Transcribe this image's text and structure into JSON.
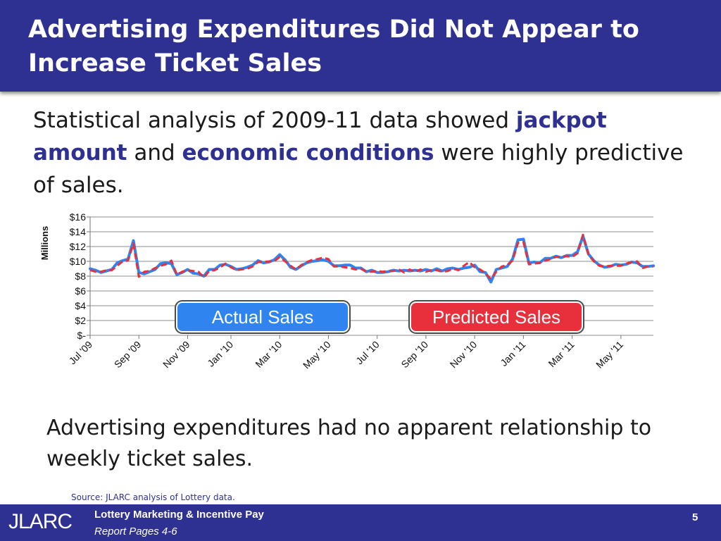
{
  "header": {
    "title": "Advertising Expenditures Did Not Appear to Increase Ticket Sales"
  },
  "intro": {
    "part1": "Statistical analysis of 2009-11 data showed ",
    "highlight1": "jackpot amount",
    "part2": " and ",
    "highlight2": "economic conditions",
    "part3": " were highly predictive of sales."
  },
  "conclusion": "Advertising expenditures had no apparent relationship to weekly ticket sales.",
  "source": "Source: JLARC analysis of Lottery data.",
  "footer": {
    "logo": "JLARC",
    "line1": "Lottery Marketing & Incentive Pay",
    "line2": "Report Pages 4-6",
    "page": "5"
  },
  "colors": {
    "accent": "#2e3192",
    "actual": "#2f84f0",
    "predicted": "#e8303c"
  },
  "chart_data": {
    "type": "line",
    "ylabel": "Millions",
    "ylim": [
      0,
      16
    ],
    "y_ticks": [
      {
        "value": 16,
        "label": "$16"
      },
      {
        "value": 14,
        "label": "$14"
      },
      {
        "value": 12,
        "label": "$12"
      },
      {
        "value": 10,
        "label": "$10"
      },
      {
        "value": 8,
        "label": "$8"
      },
      {
        "value": 6,
        "label": "$6"
      },
      {
        "value": 4,
        "label": "$4"
      },
      {
        "value": 2,
        "label": "$2"
      },
      {
        "value": 0,
        "label": "$-"
      }
    ],
    "x_ticks": [
      {
        "index": 0,
        "label": "Jul '09"
      },
      {
        "index": 9,
        "label": "Sep '09"
      },
      {
        "index": 18,
        "label": "Nov '09"
      },
      {
        "index": 26,
        "label": "Jan '10"
      },
      {
        "index": 35,
        "label": "Mar '10"
      },
      {
        "index": 44,
        "label": "May '10"
      },
      {
        "index": 53,
        "label": "Jul '10"
      },
      {
        "index": 62,
        "label": "Sep '10"
      },
      {
        "index": 71,
        "label": "Nov '10"
      },
      {
        "index": 80,
        "label": "Jan '11"
      },
      {
        "index": 89,
        "label": "Mar '11"
      },
      {
        "index": 98,
        "label": "May '11"
      }
    ],
    "grid": true,
    "legend": {
      "actual": "Actual Sales",
      "predicted": "Predicted Sales",
      "placement": "bottom"
    },
    "series": [
      {
        "name": "Actual Sales",
        "values": [
          9.0,
          8.8,
          8.5,
          8.7,
          8.9,
          9.8,
          10.1,
          10.3,
          12.8,
          8.5,
          8.3,
          8.6,
          8.9,
          9.7,
          9.8,
          9.7,
          8.2,
          8.5,
          8.9,
          8.4,
          8.3,
          8.0,
          8.9,
          8.9,
          9.5,
          9.6,
          9.3,
          8.9,
          9.0,
          9.2,
          9.5,
          10.1,
          9.8,
          9.9,
          10.2,
          10.9,
          10.2,
          9.2,
          8.9,
          9.4,
          9.8,
          10.0,
          10.1,
          10.2,
          10.0,
          9.4,
          9.4,
          9.5,
          9.5,
          9.1,
          9.1,
          8.6,
          8.8,
          8.5,
          8.5,
          8.6,
          8.8,
          8.7,
          8.8,
          8.7,
          8.8,
          8.7,
          8.9,
          8.7,
          9.0,
          8.7,
          9.0,
          9.1,
          8.9,
          9.1,
          9.2,
          9.5,
          8.6,
          8.5,
          7.2,
          8.9,
          9.1,
          9.3,
          10.3,
          12.9,
          13.0,
          9.8,
          9.9,
          9.8,
          10.4,
          10.4,
          10.7,
          10.5,
          10.8,
          10.8,
          11.3,
          13.4,
          11.0,
          10.1,
          9.5,
          9.2,
          9.3,
          9.6,
          9.5,
          9.6,
          9.9,
          9.8,
          9.3,
          9.3,
          9.4
        ]
      },
      {
        "name": "Predicted Sales",
        "values": [
          8.8,
          8.6,
          8.6,
          8.8,
          8.8,
          9.4,
          10.0,
          10.1,
          12.4,
          7.9,
          8.6,
          8.7,
          9.1,
          9.4,
          9.6,
          10.1,
          8.2,
          8.6,
          8.8,
          8.7,
          8.6,
          7.8,
          8.7,
          8.8,
          9.2,
          9.7,
          9.2,
          8.8,
          8.9,
          9.0,
          9.3,
          9.9,
          9.9,
          10.0,
          10.0,
          10.6,
          10.0,
          9.4,
          8.9,
          9.5,
          9.9,
          10.2,
          10.3,
          10.5,
          10.3,
          9.3,
          9.3,
          9.2,
          9.1,
          8.9,
          9.0,
          8.6,
          8.6,
          8.7,
          8.6,
          8.7,
          8.7,
          8.9,
          8.5,
          8.9,
          8.6,
          8.9,
          8.6,
          8.8,
          8.8,
          8.6,
          8.7,
          9.0,
          8.8,
          9.4,
          9.9,
          9.2,
          8.9,
          8.4,
          7.6,
          8.6,
          9.3,
          9.5,
          10.1,
          12.5,
          12.6,
          9.6,
          9.7,
          9.8,
          10.1,
          10.3,
          10.6,
          10.6,
          10.7,
          10.6,
          11.1,
          13.6,
          10.9,
          10.0,
          9.4,
          9.3,
          9.4,
          9.4,
          9.4,
          9.7,
          9.9,
          10.0,
          9.1,
          9.3,
          9.3
        ]
      }
    ]
  }
}
